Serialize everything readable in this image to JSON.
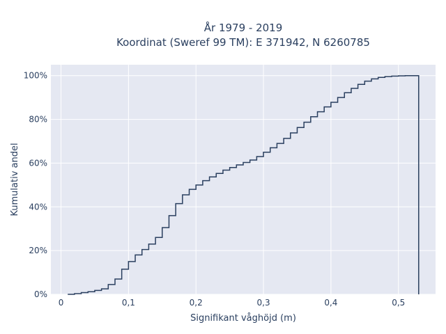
{
  "chart_data": {
    "type": "line",
    "line_shape": "step",
    "title_lines": [
      "År 1979 - 2019",
      "Koordinat (Sweref 99 TM): E 371942, N 6260785"
    ],
    "xlabel": "Signifikant våghöjd (m)",
    "ylabel": "Kumulativ andel",
    "xlim": [
      -0.015,
      0.555
    ],
    "ylim": [
      0,
      1.05
    ],
    "xticks": [
      0,
      0.1,
      0.2,
      0.3,
      0.4,
      0.5
    ],
    "xtick_labels": [
      "0",
      "0,1",
      "0,2",
      "0,3",
      "0,4",
      "0,5"
    ],
    "yticks": [
      0,
      0.2,
      0.4,
      0.6,
      0.8,
      1.0
    ],
    "ytick_labels": [
      "0%",
      "20%",
      "40%",
      "60%",
      "80%",
      "100%"
    ],
    "grid": true,
    "background_color": "#e5e8f2",
    "line_color": "#2a3f5f",
    "series": [
      {
        "x": [
          0.01,
          0.02,
          0.03,
          0.04,
          0.05,
          0.06,
          0.07,
          0.08,
          0.09,
          0.1,
          0.11,
          0.12,
          0.13,
          0.14,
          0.15,
          0.16,
          0.17,
          0.18,
          0.19,
          0.2,
          0.21,
          0.22,
          0.23,
          0.24,
          0.25,
          0.26,
          0.27,
          0.28,
          0.29,
          0.3,
          0.31,
          0.32,
          0.33,
          0.34,
          0.35,
          0.36,
          0.37,
          0.38,
          0.39,
          0.4,
          0.41,
          0.42,
          0.43,
          0.44,
          0.45,
          0.46,
          0.47,
          0.48,
          0.49,
          0.5,
          0.51,
          0.52,
          0.53,
          0.53
        ],
        "y": [
          0.0,
          0.003,
          0.008,
          0.012,
          0.018,
          0.025,
          0.045,
          0.07,
          0.115,
          0.15,
          0.18,
          0.205,
          0.23,
          0.26,
          0.305,
          0.36,
          0.415,
          0.455,
          0.48,
          0.5,
          0.52,
          0.537,
          0.553,
          0.568,
          0.58,
          0.592,
          0.603,
          0.614,
          0.63,
          0.65,
          0.67,
          0.69,
          0.713,
          0.738,
          0.763,
          0.787,
          0.812,
          0.835,
          0.857,
          0.878,
          0.9,
          0.922,
          0.942,
          0.96,
          0.975,
          0.985,
          0.992,
          0.996,
          0.998,
          0.999,
          1.0,
          1.0,
          1.0,
          0.0
        ]
      }
    ]
  }
}
